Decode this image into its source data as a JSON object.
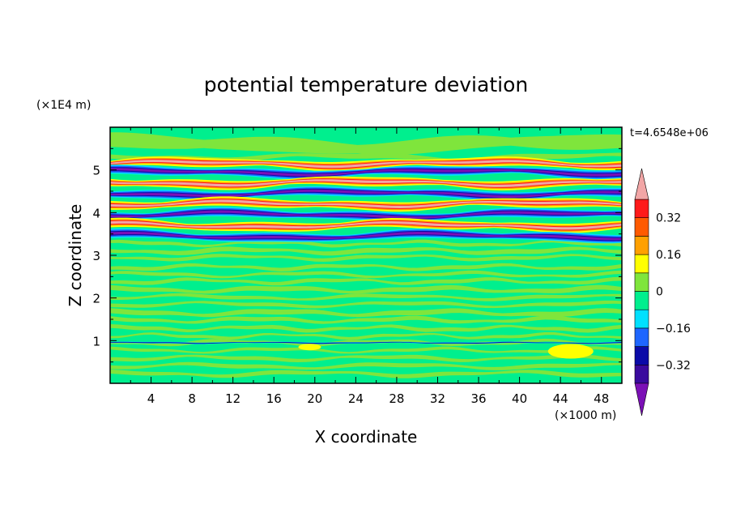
{
  "chart_data": {
    "type": "heatmap",
    "title": "potential temperature deviation",
    "xlabel": "X coordinate",
    "ylabel": "Z coordinate",
    "x_unit": "(×1000 m)",
    "y_unit": "(×1E4 m)",
    "time_label": "t=4.6548e+06",
    "xlim": [
      0,
      50
    ],
    "ylim": [
      0,
      6
    ],
    "x_ticks": [
      "4",
      "8",
      "12",
      "16",
      "20",
      "24",
      "28",
      "32",
      "36",
      "40",
      "44",
      "48"
    ],
    "y_ticks": [
      "1",
      "2",
      "3",
      "4",
      "5"
    ],
    "colorbar": {
      "labels": [
        "0.32",
        "0.16",
        "0",
        "−0.16",
        "−0.32"
      ],
      "levels": [
        -0.4,
        -0.32,
        -0.24,
        -0.16,
        -0.08,
        0,
        0.08,
        0.16,
        0.24,
        0.32,
        0.4
      ],
      "colors": [
        "#7b10b6",
        "#3a0a9e",
        "#0a0aa8",
        "#1e66ff",
        "#00e0ff",
        "#00ef8e",
        "#7fe53c",
        "#ffff00",
        "#ffa000",
        "#ff5a00",
        "#ff1a1a",
        "#f2a6a6"
      ]
    },
    "bands": [
      {
        "z": 5.15,
        "kind": "pos",
        "note": "orange/red band near top"
      },
      {
        "z": 4.95,
        "kind": "neg",
        "note": "dark blue / purple band"
      },
      {
        "z": 4.7,
        "kind": "pos",
        "note": "pink (>0.4) band"
      },
      {
        "z": 4.45,
        "kind": "neg",
        "note": "blue band"
      },
      {
        "z": 4.2,
        "kind": "pos",
        "note": "red / pink band"
      },
      {
        "z": 3.95,
        "kind": "neg",
        "note": "purple band"
      },
      {
        "z": 3.7,
        "kind": "pos",
        "note": "red / orange band"
      },
      {
        "z": 3.45,
        "kind": "neg",
        "note": "blue / cyan band"
      },
      {
        "z": 0.95,
        "kind": "mixed",
        "note": "thin layer near z=1"
      }
    ]
  }
}
